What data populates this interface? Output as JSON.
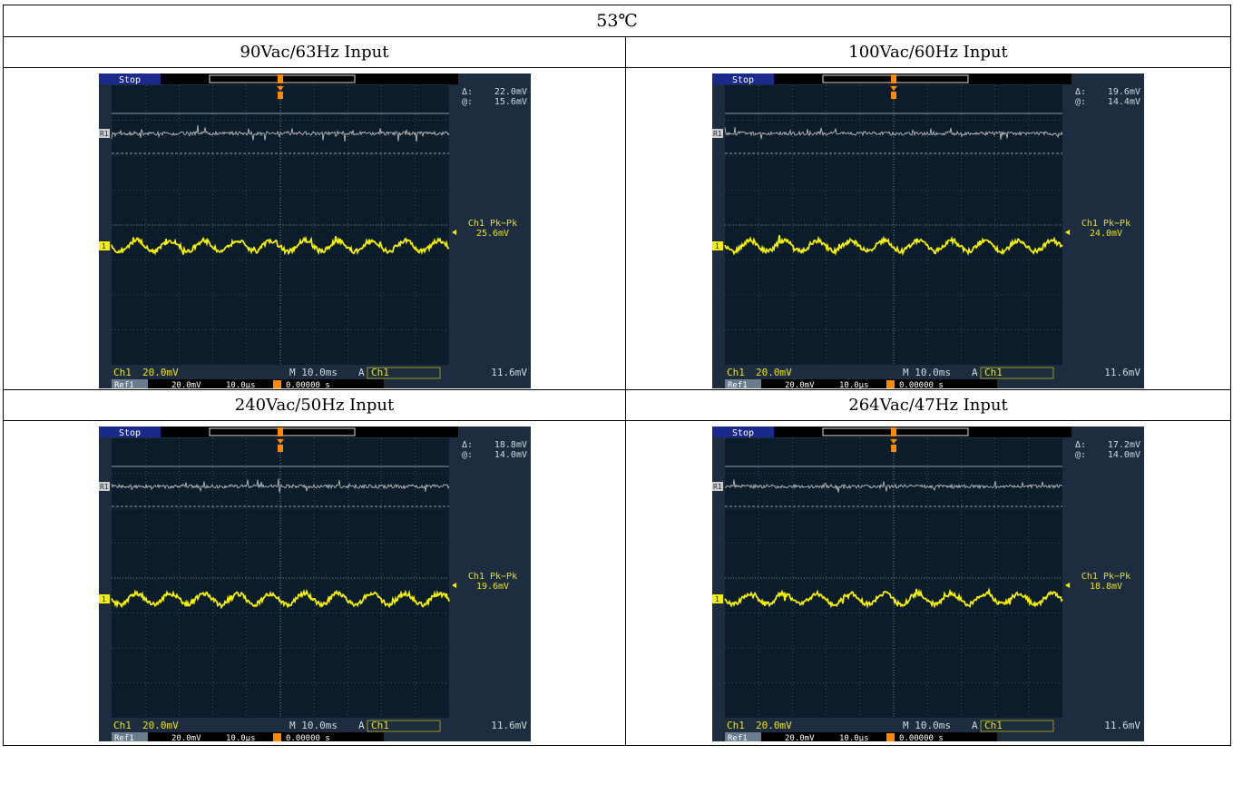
{
  "header": "53℃",
  "scope_common": {
    "state": "Stop",
    "ch1_scale": "20.0mV",
    "timebase": "M 10.0ms",
    "trigger_source": "A",
    "trigger_channel": "Ch1",
    "trigger_level": "11.6mV",
    "ref_label": "Ref1",
    "ref_scale": "20.0mV",
    "ref_time": "10.0μs",
    "trigger_delay": "0.00000 s",
    "ch1_label": "Ch1",
    "measure_label": "Ch1 Pk−Pk",
    "delta_label": "Δ:",
    "at_label": "@:"
  },
  "panels": [
    {
      "title": "90Vac/63Hz Input",
      "delta": "22.0mV",
      "at": "15.6mV",
      "pkpk": "25.6mV"
    },
    {
      "title": "100Vac/60Hz Input",
      "delta": "19.6mV",
      "at": "14.4mV",
      "pkpk": "24.0mV"
    },
    {
      "title": "240Vac/50Hz Input",
      "delta": "18.8mV",
      "at": "14.0mV",
      "pkpk": "19.6mV"
    },
    {
      "title": "264Vac/47Hz Input",
      "delta": "17.2mV",
      "at": "14.0mV",
      "pkpk": "18.8mV"
    }
  ],
  "colors": {
    "screen_bg": "#0b1c2a",
    "frame_bg": "#1d2d3f",
    "grid": "#5a6b7a",
    "ch1_trace": "#f5f000",
    "ref_trace": "#b8b8b8",
    "trigger_marker": "#ff8a00",
    "label_yellow": "#e8e010",
    "label_light": "#d0d8e0"
  }
}
